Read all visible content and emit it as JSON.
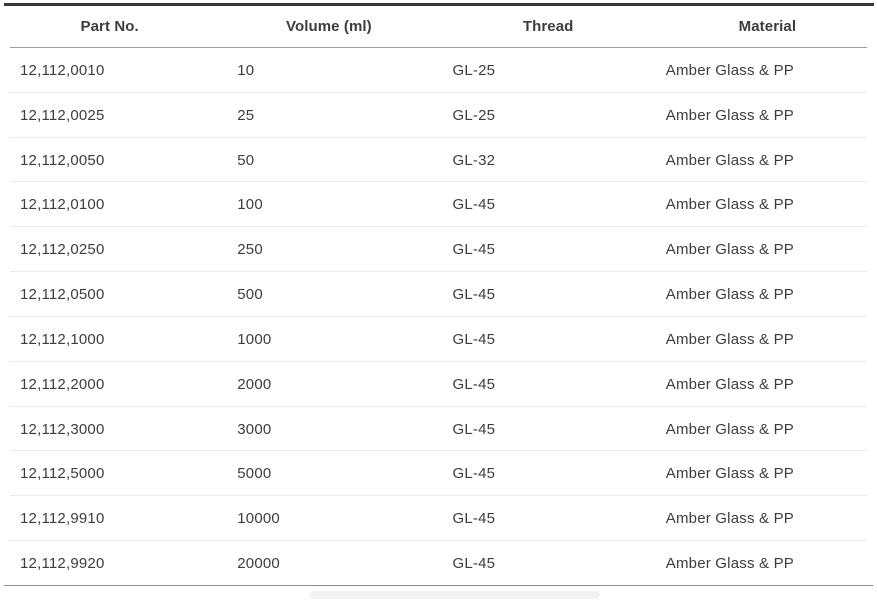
{
  "table": {
    "columns": [
      "Part No.",
      "Volume (ml)",
      "Thread",
      "Material"
    ],
    "rows": [
      [
        "12,112,0010",
        "10",
        "GL-25",
        "Amber Glass & PP"
      ],
      [
        "12,112,0025",
        "25",
        "GL-25",
        "Amber Glass & PP"
      ],
      [
        "12,112,0050",
        "50",
        "GL-32",
        "Amber Glass & PP"
      ],
      [
        "12,112,0100",
        "100",
        "GL-45",
        "Amber Glass & PP"
      ],
      [
        "12,112,0250",
        "250",
        "GL-45",
        "Amber Glass & PP"
      ],
      [
        "12,112,0500",
        "500",
        "GL-45",
        "Amber Glass & PP"
      ],
      [
        "12,112,1000",
        "1000",
        "GL-45",
        "Amber Glass & PP"
      ],
      [
        "12,112,2000",
        "2000",
        "GL-45",
        "Amber Glass & PP"
      ],
      [
        "12,112,3000",
        "3000",
        "GL-45",
        "Amber Glass & PP"
      ],
      [
        "12,112,5000",
        "5000",
        "GL-45",
        "Amber Glass & PP"
      ],
      [
        "12,112,9910",
        "10000",
        "GL-45",
        "Amber Glass & PP"
      ],
      [
        "12,112,9920",
        "20000",
        "GL-45",
        "Amber Glass & PP"
      ]
    ]
  },
  "colors": {
    "top_bar": "#373737",
    "header_rule": "#9b9b9b",
    "row_divider": "#ebebeb",
    "bottom_rule": "#8e8e8e",
    "text": "#3d3d3d",
    "scroll_thumb": "#f3f1f1"
  }
}
